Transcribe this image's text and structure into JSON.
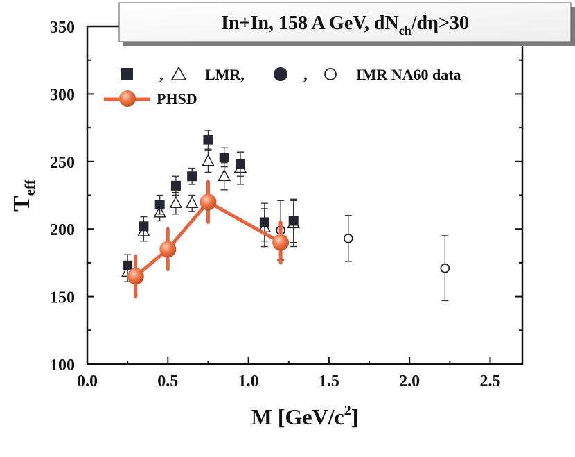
{
  "chart_data": {
    "type": "scatter",
    "title": "In+In, 158 A GeV, dN",
    "title_sub": "ch",
    "title_tail": "/dη>30",
    "xlabel": "M  [GeV/c",
    "xlabel_sup": "2",
    "xlabel_tail": "]",
    "ylabel": "T",
    "ylabel_sub": "eff",
    "xlim": [
      0.0,
      2.7
    ],
    "ylim": [
      100,
      350
    ],
    "xticks": [
      "0.0",
      "0.5",
      "1.0",
      "1.5",
      "2.0",
      "2.5"
    ],
    "xtick_values": [
      0.0,
      0.5,
      1.0,
      1.5,
      2.0,
      2.5
    ],
    "yticks": [
      "100",
      "150",
      "200",
      "250",
      "300",
      "350"
    ],
    "ytick_values": [
      100,
      150,
      200,
      250,
      300,
      350
    ],
    "legend": {
      "sep1": ",",
      "lmr_label": "LMR,",
      "sep2": ",",
      "imr_label": "IMR  NA60 data",
      "phsd_label": "PHSD",
      "placement": "top-left"
    },
    "series": [
      {
        "marker": "filled-square",
        "points": [
          {
            "x": 0.25,
            "y": 173,
            "err": 8
          },
          {
            "x": 0.35,
            "y": 202,
            "err": 7
          },
          {
            "x": 0.45,
            "y": 218,
            "err": 7
          },
          {
            "x": 0.55,
            "y": 232,
            "err": 7
          },
          {
            "x": 0.65,
            "y": 239,
            "err": 6
          },
          {
            "x": 0.75,
            "y": 266,
            "err": 7
          },
          {
            "x": 0.85,
            "y": 253,
            "err": 7
          },
          {
            "x": 0.95,
            "y": 248,
            "err": 9
          },
          {
            "x": 1.1,
            "y": 205,
            "err": 14
          },
          {
            "x": 1.28,
            "y": 206,
            "err": 16
          }
        ]
      },
      {
        "marker": "open-triangle",
        "points": [
          {
            "x": 0.25,
            "y": 168,
            "err": 7
          },
          {
            "x": 0.35,
            "y": 198,
            "err": 7
          },
          {
            "x": 0.45,
            "y": 212,
            "err": 6
          },
          {
            "x": 0.55,
            "y": 219,
            "err": 8
          },
          {
            "x": 0.65,
            "y": 219,
            "err": 6
          },
          {
            "x": 0.75,
            "y": 250,
            "err": 8
          },
          {
            "x": 0.85,
            "y": 239,
            "err": 10
          },
          {
            "x": 0.95,
            "y": 245,
            "err": 12
          },
          {
            "x": 1.1,
            "y": 201,
            "err": 14
          },
          {
            "x": 1.28,
            "y": 204,
            "err": 17
          }
        ]
      },
      {
        "marker": "filled-circle",
        "points": []
      },
      {
        "marker": "open-circle",
        "points": [
          {
            "x": 1.2,
            "y": 199,
            "err": 22
          },
          {
            "x": 1.62,
            "y": 193,
            "err": 17
          },
          {
            "x": 2.22,
            "y": 171,
            "err": 24
          }
        ]
      },
      {
        "marker": "phsd-line",
        "color": "#e8643c",
        "points": [
          {
            "x": 0.3,
            "y": 165,
            "err": 15
          },
          {
            "x": 0.5,
            "y": 185,
            "err": 15
          },
          {
            "x": 0.75,
            "y": 220,
            "err": 15
          },
          {
            "x": 1.2,
            "y": 190,
            "err": 15
          }
        ]
      }
    ]
  }
}
